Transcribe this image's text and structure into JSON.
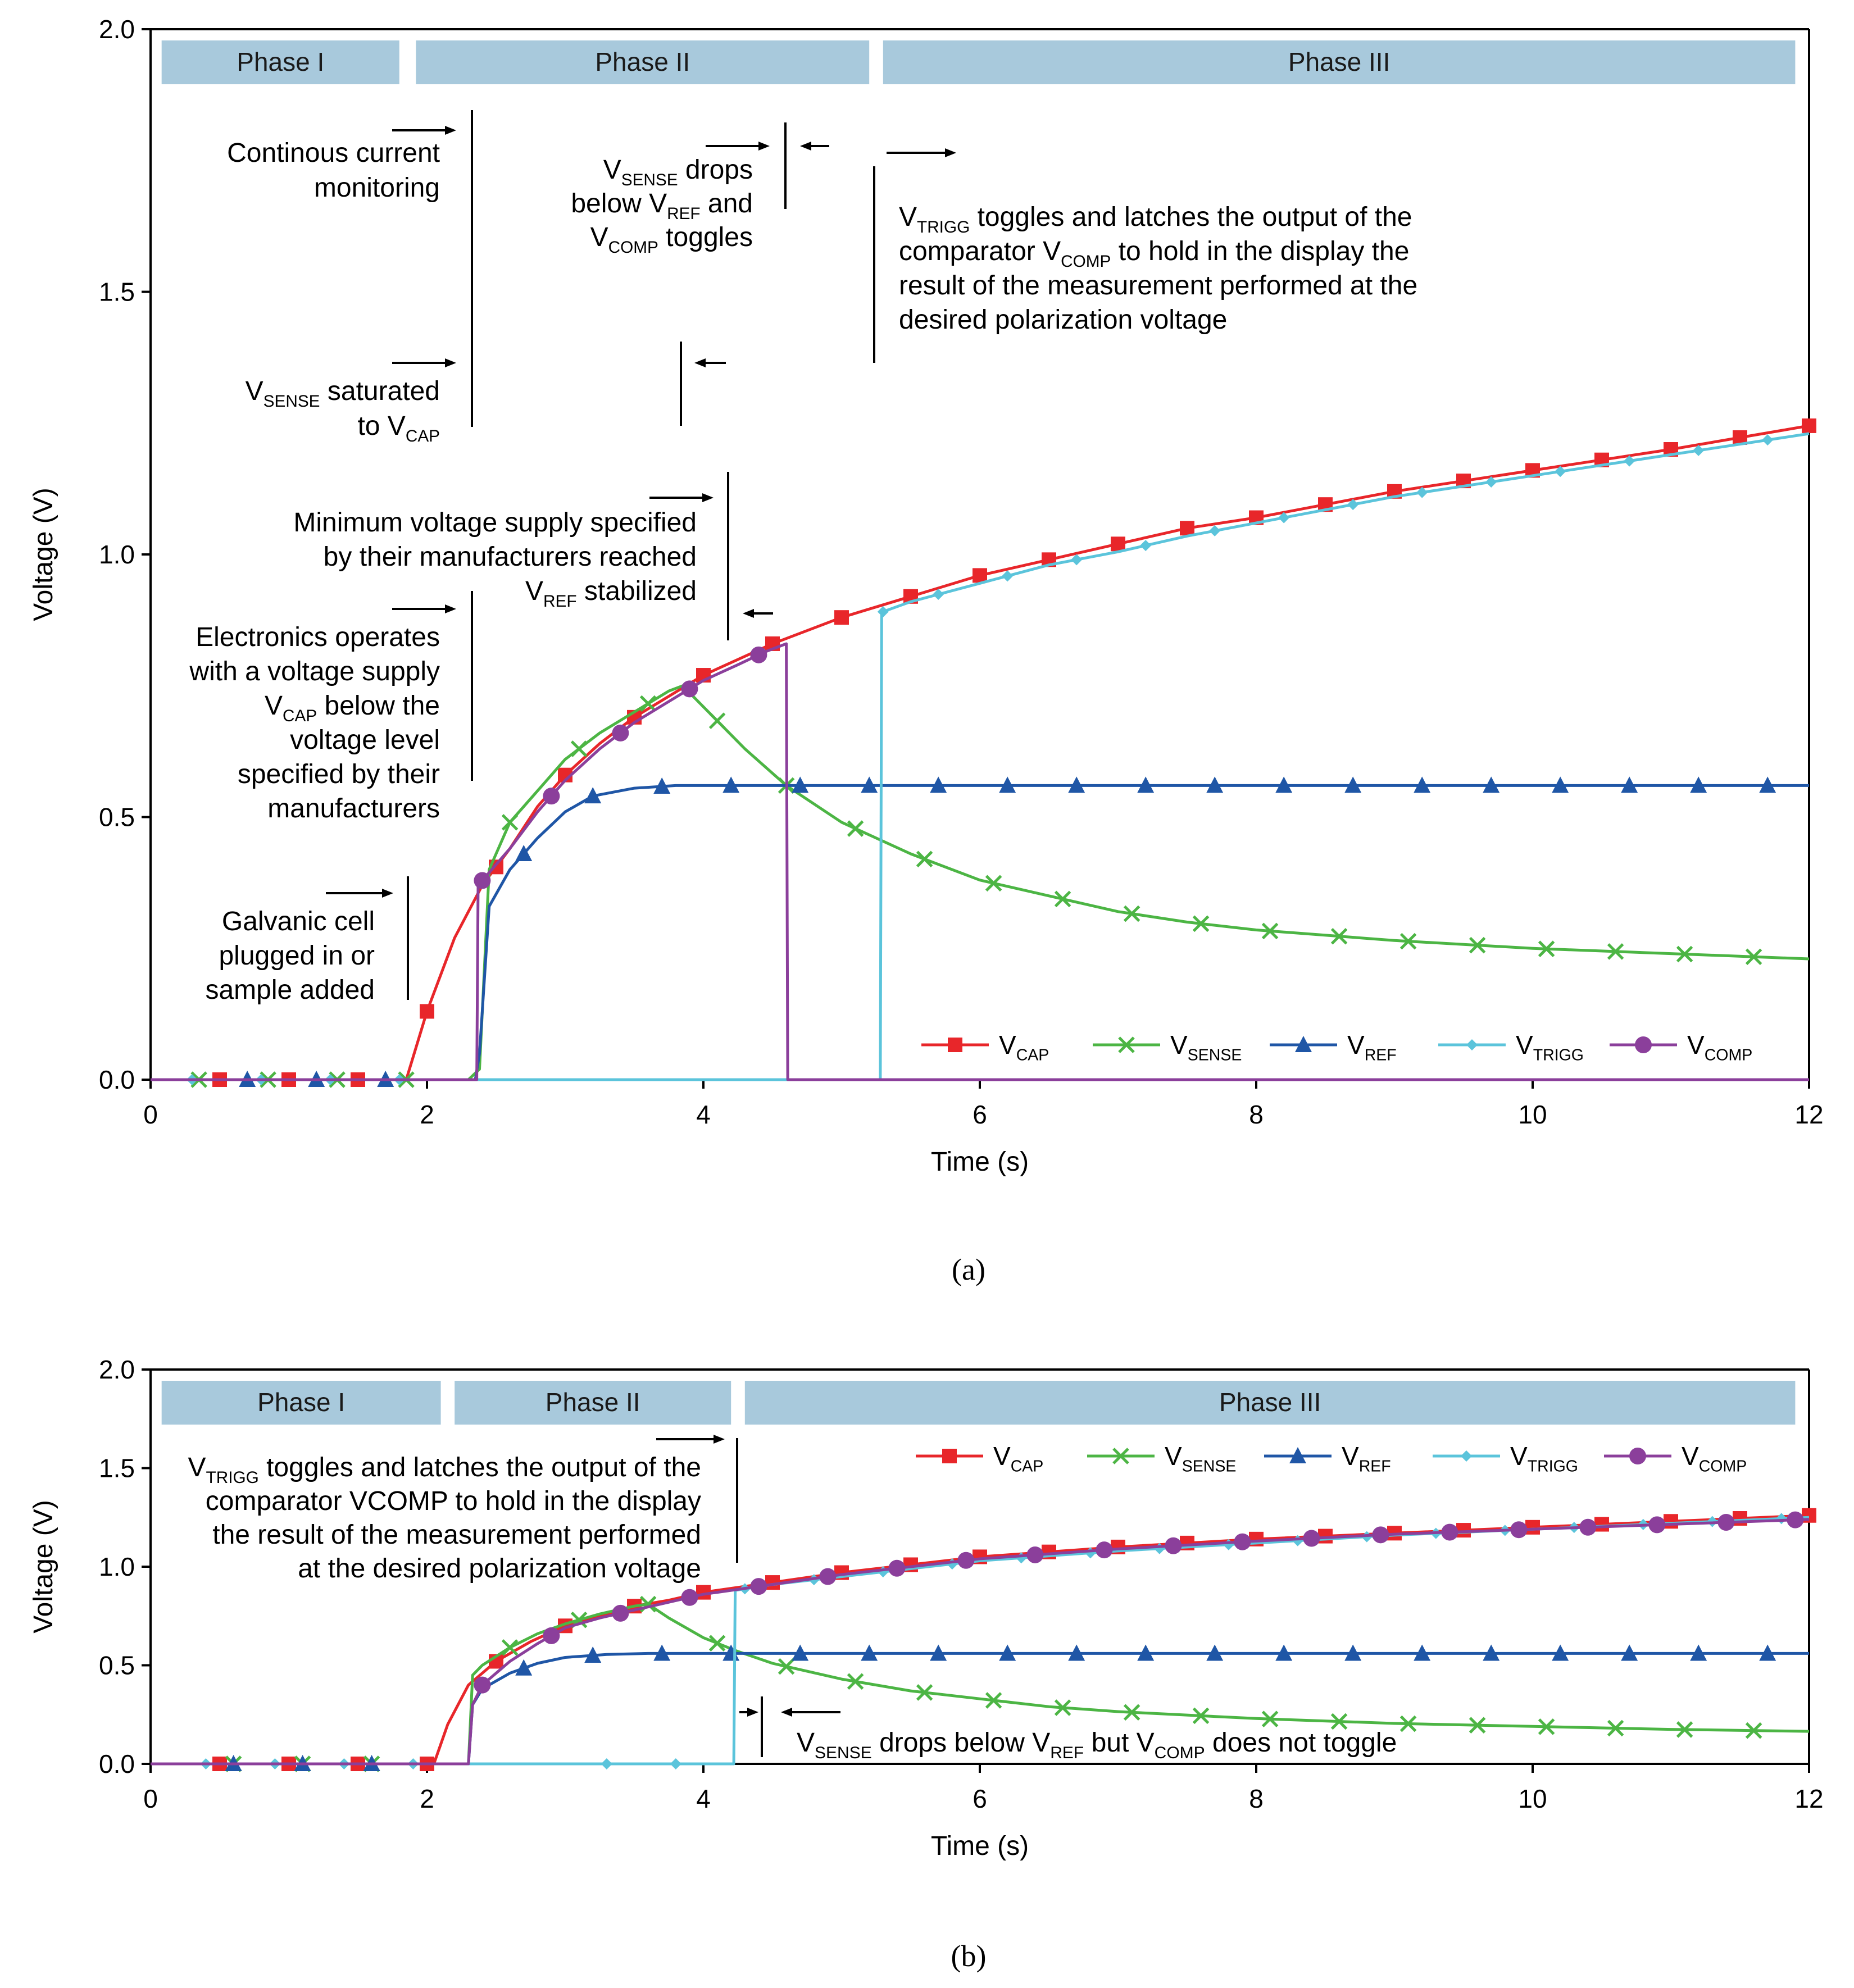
{
  "colors": {
    "vcap": "#e8262a",
    "vsense": "#4cb544",
    "vref": "#1f56a6",
    "vtrigg": "#5bc4db",
    "vcomp": "#8b3f9b",
    "phase": "#a8c9dc",
    "annotation": "#000000"
  },
  "chart_data": [
    {
      "type": "line",
      "caption": "(a)",
      "xlabel": "Time (s)",
      "ylabel": "Voltage (V)",
      "xlim": [
        0,
        12
      ],
      "ylim": [
        0,
        2
      ],
      "xticks": [
        0,
        2,
        4,
        6,
        8,
        10,
        12
      ],
      "yticks": [
        0.0,
        0.5,
        1.0,
        1.5,
        2.0
      ],
      "ytick_labels": [
        "0.0",
        "0.5",
        "1.0",
        "1.5",
        "2.0"
      ],
      "legend_position": "bottom-right",
      "phases": [
        {
          "label": "Phase I",
          "start": 0.08,
          "end": 1.8
        },
        {
          "label": "Phase II",
          "start": 1.92,
          "end": 5.2
        },
        {
          "label": "Phase III",
          "start": 5.3,
          "end": 11.9
        }
      ],
      "series": [
        {
          "name": "VCAP",
          "main": "V",
          "sub": "CAP",
          "color_key": "vcap",
          "marker": "square",
          "x": [
            0,
            1.85,
            2.0,
            2.2,
            2.4,
            2.6,
            2.8,
            3.0,
            3.25,
            3.5,
            3.75,
            4.0,
            4.5,
            5.0,
            5.5,
            6.0,
            6.5,
            7.0,
            7.5,
            8.0,
            9.0,
            10.0,
            11.0,
            12.0
          ],
          "y": [
            0,
            0,
            0.13,
            0.27,
            0.37,
            0.44,
            0.52,
            0.58,
            0.64,
            0.69,
            0.73,
            0.77,
            0.83,
            0.88,
            0.92,
            0.96,
            0.99,
            1.02,
            1.05,
            1.07,
            1.12,
            1.16,
            1.2,
            1.245
          ],
          "marker_x": [
            0.5,
            1.0,
            1.5,
            2.0,
            2.5,
            3.0,
            3.5,
            4.0,
            4.5,
            5.0,
            5.5,
            6.0,
            6.5,
            7.0,
            7.5,
            8.0,
            8.5,
            9.0,
            9.5,
            10.0,
            10.5,
            11.0,
            11.5,
            12.0
          ]
        },
        {
          "name": "VSENSE",
          "main": "V",
          "sub": "SENSE",
          "color_key": "vsense",
          "marker": "x",
          "x": [
            0,
            2.3,
            2.38,
            2.45,
            2.6,
            2.8,
            3.0,
            3.25,
            3.5,
            3.75,
            3.85,
            4.0,
            4.3,
            4.6,
            5.0,
            5.5,
            6.0,
            6.5,
            7.0,
            7.5,
            8.0,
            9.0,
            10.0,
            11.0,
            12.0
          ],
          "y": [
            0,
            0,
            0.02,
            0.4,
            0.49,
            0.55,
            0.61,
            0.66,
            0.7,
            0.74,
            0.75,
            0.71,
            0.63,
            0.56,
            0.49,
            0.43,
            0.38,
            0.35,
            0.32,
            0.3,
            0.285,
            0.265,
            0.25,
            0.24,
            0.23
          ],
          "marker_x": [
            0.35,
            0.85,
            1.35,
            1.85,
            2.6,
            3.1,
            3.6,
            4.1,
            4.6,
            5.1,
            5.6,
            6.1,
            6.6,
            7.1,
            7.6,
            8.1,
            8.6,
            9.1,
            9.6,
            10.1,
            10.6,
            11.1,
            11.6
          ]
        },
        {
          "name": "VREF",
          "main": "V",
          "sub": "REF",
          "color_key": "vref",
          "marker": "triangle",
          "x": [
            0,
            2.35,
            2.38,
            2.45,
            2.6,
            2.8,
            3.0,
            3.2,
            3.5,
            3.8,
            4.2,
            5.0,
            6.0,
            8.0,
            10.0,
            12.0
          ],
          "y": [
            0,
            0,
            0.05,
            0.33,
            0.4,
            0.46,
            0.51,
            0.54,
            0.555,
            0.56,
            0.56,
            0.56,
            0.56,
            0.56,
            0.56,
            0.56
          ],
          "marker_x": [
            0.7,
            1.2,
            1.7,
            2.7,
            3.2,
            3.7,
            4.2,
            4.7,
            5.2,
            5.7,
            6.2,
            6.7,
            7.2,
            7.7,
            8.2,
            8.7,
            9.2,
            9.7,
            10.2,
            10.7,
            11.2,
            11.7
          ]
        },
        {
          "name": "VTRIGG",
          "main": "V",
          "sub": "TRIGG",
          "color_key": "vtrigg",
          "marker": "diamond",
          "x": [
            0,
            5.28,
            5.29,
            5.5,
            6.0,
            6.5,
            7.0,
            7.5,
            8.0,
            9.0,
            10.0,
            11.0,
            12.0
          ],
          "y": [
            0,
            0,
            0.89,
            0.91,
            0.945,
            0.98,
            1.005,
            1.035,
            1.06,
            1.11,
            1.15,
            1.19,
            1.23
          ],
          "marker_x": [
            0.3,
            0.8,
            1.3,
            1.8,
            5.3,
            5.7,
            6.2,
            6.7,
            7.2,
            7.7,
            8.2,
            8.7,
            9.2,
            9.7,
            10.2,
            10.7,
            11.2,
            11.7
          ]
        },
        {
          "name": "VCOMP",
          "main": "V",
          "sub": "COMP",
          "color_key": "vcomp",
          "marker": "circle",
          "x": [
            0,
            2.36,
            2.37,
            2.6,
            2.8,
            3.0,
            3.25,
            3.5,
            3.75,
            4.0,
            4.25,
            4.45,
            4.6,
            4.61,
            12.0
          ],
          "y": [
            0,
            0,
            0.37,
            0.44,
            0.51,
            0.57,
            0.63,
            0.68,
            0.72,
            0.76,
            0.79,
            0.815,
            0.83,
            0,
            0
          ],
          "marker_x": [
            2.4,
            2.9,
            3.4,
            3.9,
            4.4
          ]
        }
      ],
      "annotations": [
        {
          "id": "ann1",
          "lines": [
            "Continous current",
            "monitoring"
          ]
        },
        {
          "id": "ann2",
          "lines": [
            [
              "V",
              "SENSE",
              " saturated"
            ],
            [
              "to V",
              "CAP",
              ""
            ]
          ]
        },
        {
          "id": "ann3",
          "lines": [
            [
              "V",
              "SENSE",
              " drops"
            ],
            [
              "below V",
              "REF",
              " and"
            ],
            [
              "V",
              "COMP",
              " toggles"
            ]
          ]
        },
        {
          "id": "ann4",
          "lines": [
            [
              "V",
              "TRIGG",
              " toggles and latches the output of the"
            ],
            [
              "comparator V",
              "COMP",
              " to hold in the display the"
            ],
            [
              "result of the measurement performed at the",
              "",
              ""
            ],
            [
              "desired polarization voltage",
              "",
              ""
            ]
          ]
        },
        {
          "id": "ann5",
          "lines": [
            [
              "Minimum voltage supply specified",
              "",
              ""
            ],
            [
              "by their manufacturers reached",
              "",
              ""
            ],
            [
              "V",
              "REF",
              " stabilized"
            ]
          ]
        },
        {
          "id": "ann6",
          "lines": [
            [
              "Electronics operates",
              "",
              ""
            ],
            [
              "with a voltage supply",
              "",
              ""
            ],
            [
              "V",
              "CAP",
              " below the"
            ],
            [
              "voltage level",
              "",
              ""
            ],
            [
              "specified by their",
              "",
              ""
            ],
            [
              "manufacturers",
              "",
              ""
            ]
          ]
        },
        {
          "id": "ann7",
          "lines": [
            "Galvanic cell",
            "plugged in or",
            "sample added"
          ]
        }
      ]
    },
    {
      "type": "line",
      "caption": "(b)",
      "xlabel": "Time (s)",
      "ylabel": "Voltage (V)",
      "xlim": [
        0,
        12
      ],
      "ylim": [
        0,
        2
      ],
      "xticks": [
        0,
        2,
        4,
        6,
        8,
        10,
        12
      ],
      "yticks": [
        0.0,
        0.5,
        1.0,
        1.5,
        2.0
      ],
      "ytick_labels": [
        "0.0",
        "0.5",
        "1.0",
        "1.5",
        "2.0"
      ],
      "legend_position": "top-right",
      "phases": [
        {
          "label": "Phase I",
          "start": 0.08,
          "end": 2.1
        },
        {
          "label": "Phase II",
          "start": 2.2,
          "end": 4.2
        },
        {
          "label": "Phase III",
          "start": 4.3,
          "end": 11.9
        }
      ],
      "series": [
        {
          "name": "VCAP",
          "main": "V",
          "sub": "CAP",
          "color_key": "vcap",
          "marker": "square",
          "x": [
            0,
            2.05,
            2.15,
            2.3,
            2.5,
            2.75,
            3.0,
            3.25,
            3.5,
            3.75,
            4.0,
            4.5,
            5.0,
            5.5,
            6.0,
            7.0,
            8.0,
            9.0,
            10.0,
            11.0,
            12.0
          ],
          "y": [
            0,
            0,
            0.2,
            0.4,
            0.52,
            0.62,
            0.7,
            0.75,
            0.8,
            0.83,
            0.87,
            0.92,
            0.97,
            1.01,
            1.05,
            1.1,
            1.14,
            1.17,
            1.2,
            1.23,
            1.26
          ],
          "marker_x": [
            0.5,
            1.0,
            1.5,
            2.0,
            2.5,
            3.0,
            3.5,
            4.0,
            4.5,
            5.0,
            5.5,
            6.0,
            6.5,
            7.0,
            7.5,
            8.0,
            8.5,
            9.0,
            9.5,
            10.0,
            10.5,
            11.0,
            11.5,
            12.0
          ]
        },
        {
          "name": "VSENSE",
          "main": "V",
          "sub": "SENSE",
          "color_key": "vsense",
          "marker": "x",
          "x": [
            0,
            2.3,
            2.33,
            2.4,
            2.6,
            2.8,
            3.0,
            3.25,
            3.5,
            3.6,
            3.75,
            4.0,
            4.25,
            4.5,
            5.0,
            5.5,
            6.0,
            6.5,
            7.0,
            8.0,
            9.0,
            10.0,
            11.0,
            12.0
          ],
          "y": [
            0,
            0,
            0.45,
            0.5,
            0.59,
            0.66,
            0.71,
            0.76,
            0.8,
            0.81,
            0.74,
            0.64,
            0.57,
            0.51,
            0.43,
            0.37,
            0.33,
            0.29,
            0.265,
            0.23,
            0.205,
            0.19,
            0.175,
            0.165
          ],
          "marker_x": [
            0.6,
            1.1,
            1.6,
            2.6,
            3.1,
            3.6,
            4.1,
            4.6,
            5.1,
            5.6,
            6.1,
            6.6,
            7.1,
            7.6,
            8.1,
            8.6,
            9.1,
            9.6,
            10.1,
            10.6,
            11.1,
            11.6
          ]
        },
        {
          "name": "VREF",
          "main": "V",
          "sub": "REF",
          "color_key": "vref",
          "marker": "triangle",
          "x": [
            0,
            2.3,
            2.33,
            2.4,
            2.6,
            2.8,
            3.0,
            3.3,
            3.6,
            4.0,
            6.0,
            8.0,
            10.0,
            12.0
          ],
          "y": [
            0,
            0,
            0.3,
            0.38,
            0.46,
            0.51,
            0.54,
            0.555,
            0.56,
            0.56,
            0.56,
            0.56,
            0.56,
            0.56
          ],
          "marker_x": [
            0.6,
            1.1,
            1.6,
            2.7,
            3.2,
            3.7,
            4.2,
            4.7,
            5.2,
            5.7,
            6.2,
            6.7,
            7.2,
            7.7,
            8.2,
            8.7,
            9.2,
            9.7,
            10.2,
            10.7,
            11.2,
            11.7
          ]
        },
        {
          "name": "VTRIGG",
          "main": "V",
          "sub": "TRIGG",
          "color_key": "vtrigg",
          "marker": "diamond",
          "x": [
            0,
            4.22,
            4.23,
            4.5,
            5.0,
            5.5,
            6.0,
            7.0,
            8.0,
            9.0,
            10.0,
            11.0,
            12.0
          ],
          "y": [
            0,
            0,
            0.88,
            0.91,
            0.95,
            0.99,
            1.03,
            1.08,
            1.12,
            1.16,
            1.19,
            1.22,
            1.25
          ],
          "marker_x": [
            0.4,
            0.9,
            1.4,
            1.9,
            3.3,
            3.8,
            4.3,
            4.8,
            5.3,
            5.8,
            6.3,
            6.8,
            7.3,
            7.8,
            8.3,
            8.8,
            9.3,
            9.8,
            10.3,
            10.8,
            11.3,
            11.8
          ]
        },
        {
          "name": "VCOMP",
          "main": "V",
          "sub": "COMP",
          "color_key": "vcomp",
          "marker": "circle",
          "x": [
            0,
            2.3,
            2.33,
            2.4,
            2.6,
            2.8,
            3.0,
            3.25,
            3.5,
            3.75,
            4.0,
            4.5,
            5.0,
            5.5,
            6.0,
            7.0,
            8.0,
            9.0,
            10.0,
            11.0,
            12.0
          ],
          "y": [
            0,
            0,
            0.3,
            0.4,
            0.52,
            0.61,
            0.69,
            0.74,
            0.78,
            0.82,
            0.86,
            0.91,
            0.96,
            1.0,
            1.04,
            1.09,
            1.13,
            1.165,
            1.19,
            1.215,
            1.24
          ],
          "marker_x": [
            2.4,
            2.9,
            3.4,
            3.9,
            4.4,
            4.9,
            5.4,
            5.9,
            6.4,
            6.9,
            7.4,
            7.9,
            8.4,
            8.9,
            9.4,
            9.9,
            10.4,
            10.9,
            11.4,
            11.9
          ]
        }
      ],
      "annotations": [
        {
          "id": "ann1",
          "lines": [
            [
              "V",
              "TRIGG",
              " toggles and latches the output of the"
            ],
            [
              "comparator VCOMP to hold in the display",
              "",
              ""
            ],
            [
              "the result of the measurement performed",
              "",
              ""
            ],
            [
              "at the desired polarization voltage",
              "",
              ""
            ]
          ]
        },
        {
          "id": "ann2",
          "lines": [
            [
              "V",
              "SENSE",
              " drops below V"
            ],
            [
              "REF",
              " but V",
              ""
            ],
            [
              "COMP",
              " does not toggle",
              ""
            ]
          ]
        }
      ]
    }
  ]
}
